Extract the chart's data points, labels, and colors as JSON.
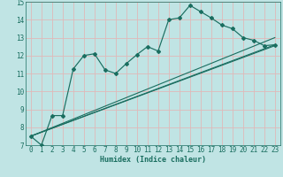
{
  "xlabel": "Humidex (Indice chaleur)",
  "xlim": [
    0,
    23
  ],
  "ylim": [
    7,
    15
  ],
  "yticks": [
    7,
    8,
    9,
    10,
    11,
    12,
    13,
    14,
    15
  ],
  "xticks": [
    0,
    1,
    2,
    3,
    4,
    5,
    6,
    7,
    8,
    9,
    10,
    11,
    12,
    13,
    14,
    15,
    16,
    17,
    18,
    19,
    20,
    21,
    22,
    23
  ],
  "bg_color": "#c0e4e4",
  "grid_color": "#e0b8b8",
  "line_color": "#1a6e60",
  "main_x": [
    0,
    1,
    2,
    3,
    4,
    5,
    6,
    7,
    8,
    9,
    10,
    11,
    12,
    13,
    14,
    15,
    16,
    17,
    18,
    19,
    20,
    21,
    22,
    23
  ],
  "main_y": [
    7.5,
    7.0,
    8.65,
    8.65,
    11.25,
    12.0,
    12.1,
    11.2,
    11.0,
    11.55,
    12.05,
    12.5,
    12.25,
    14.0,
    14.1,
    14.8,
    14.45,
    14.1,
    13.7,
    13.5,
    13.0,
    12.85,
    12.55,
    12.6
  ],
  "trend1_x": [
    0,
    23
  ],
  "trend1_y": [
    7.5,
    12.55
  ],
  "trend2_x": [
    0,
    23
  ],
  "trend2_y": [
    7.5,
    13.0
  ],
  "trend3_x": [
    0,
    23
  ],
  "trend3_y": [
    7.5,
    12.6
  ],
  "tick_fontsize": 5.5,
  "xlabel_fontsize": 6.0
}
